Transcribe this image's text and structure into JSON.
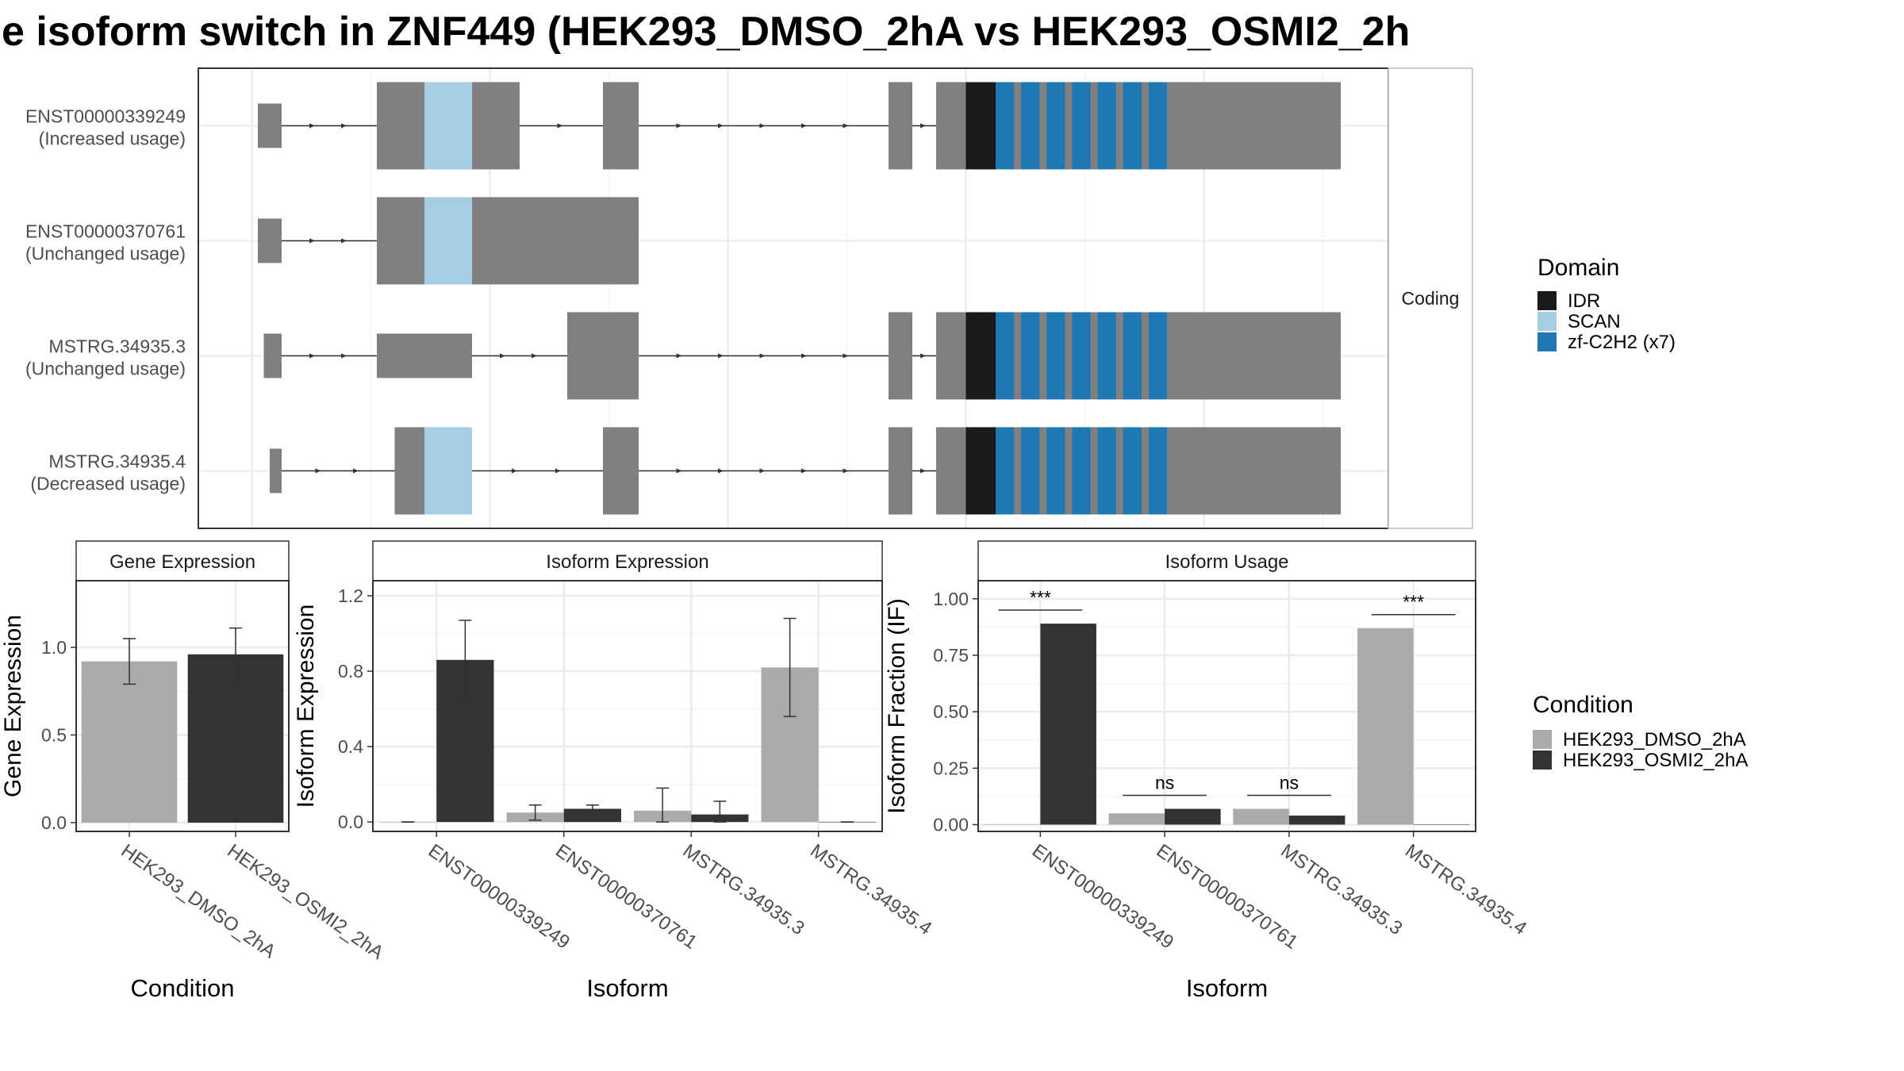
{
  "title": "e isoform switch in ZNF449 (HEK293_DMSO_2hA vs HEK293_OSMI2_2h",
  "colors": {
    "exon": "#808080",
    "idr": "#1a1a1a",
    "scan": "#a6cee3",
    "zf": "#1f78b4",
    "dmso": "#aaaaaa",
    "osmi": "#333333",
    "grid": "#ebebeb",
    "panel_border": "#333333",
    "strip_bg": "#ffffff"
  },
  "structure": {
    "strip_label": "Coding",
    "legend_title": "Domain",
    "legend_items": [
      {
        "label": "IDR",
        "color": "#1a1a1a"
      },
      {
        "label": "SCAN",
        "color": "#a6cee3"
      },
      {
        "label": "zf-C2H2 (x7)",
        "color": "#1f78b4"
      }
    ],
    "transcripts": [
      {
        "name": "ENST00000339249",
        "usage": "(Increased usage)",
        "exons": [
          [
            0.05,
            0.07,
            "n"
          ],
          [
            0.15,
            0.27,
            "c"
          ],
          [
            0.34,
            0.37,
            "c"
          ],
          [
            0.58,
            0.6,
            "c"
          ],
          [
            0.62,
            0.96,
            "c"
          ]
        ],
        "domains": [
          [
            0.19,
            0.23,
            "scan"
          ],
          [
            0.645,
            0.67,
            "idr"
          ],
          [
            0.67,
            0.82,
            "zf"
          ]
        ]
      },
      {
        "name": "ENST00000370761",
        "usage": "(Unchanged usage)",
        "exons": [
          [
            0.05,
            0.07,
            "n"
          ],
          [
            0.15,
            0.37,
            "c"
          ]
        ],
        "domains": [
          [
            0.19,
            0.23,
            "scan"
          ]
        ]
      },
      {
        "name": "MSTRG.34935.3",
        "usage": "(Unchanged usage)",
        "exons": [
          [
            0.055,
            0.07,
            "n"
          ],
          [
            0.15,
            0.23,
            "n"
          ],
          [
            0.31,
            0.37,
            "c"
          ],
          [
            0.58,
            0.6,
            "c"
          ],
          [
            0.62,
            0.96,
            "c"
          ]
        ],
        "domains": [
          [
            0.645,
            0.67,
            "idr"
          ],
          [
            0.67,
            0.82,
            "zf"
          ]
        ]
      },
      {
        "name": "MSTRG.34935.4",
        "usage": "(Decreased usage)",
        "exons": [
          [
            0.06,
            0.07,
            "n"
          ],
          [
            0.165,
            0.23,
            "c"
          ],
          [
            0.34,
            0.37,
            "c"
          ],
          [
            0.58,
            0.6,
            "c"
          ],
          [
            0.62,
            0.96,
            "c"
          ]
        ],
        "domains": [
          [
            0.19,
            0.23,
            "scan"
          ],
          [
            0.645,
            0.67,
            "idr"
          ],
          [
            0.67,
            0.82,
            "zf"
          ]
        ]
      }
    ]
  },
  "chart_data": [
    {
      "type": "bar",
      "title": "Gene Expression",
      "xlabel": "Condition",
      "ylabel": "Gene Expression",
      "categories": [
        "HEK293_DMSO_2hA",
        "HEK293_OSMI2_2hA"
      ],
      "values": [
        0.92,
        0.96
      ],
      "error": [
        [
          0.79,
          1.05
        ],
        [
          0.81,
          1.11
        ]
      ],
      "ylim": [
        -0.05,
        1.38
      ],
      "yticks": [
        "0.0",
        "0.5",
        "1.0"
      ],
      "grid": true
    },
    {
      "type": "bar",
      "title": "Isoform Expression",
      "xlabel": "Isoform",
      "ylabel": "Isoform Expression",
      "categories": [
        "ENST00000339249",
        "ENST00000370761",
        "MSTRG.34935.3",
        "MSTRG.34935.4"
      ],
      "series": [
        {
          "name": "HEK293_DMSO_2hA",
          "values": [
            0.0,
            0.05,
            0.06,
            0.82
          ],
          "error": [
            [
              0.0,
              0.0
            ],
            [
              0.01,
              0.09
            ],
            [
              0.0,
              0.18
            ],
            [
              0.56,
              1.08
            ]
          ]
        },
        {
          "name": "HEK293_OSMI2_2hA",
          "values": [
            0.86,
            0.07,
            0.04,
            0.0
          ],
          "error": [
            [
              0.65,
              1.07
            ],
            [
              0.05,
              0.09
            ],
            [
              0.0,
              0.11
            ],
            [
              0.0,
              0.0
            ]
          ]
        }
      ],
      "ylim": [
        -0.05,
        1.28
      ],
      "yticks": [
        "0.0",
        "0.4",
        "0.8",
        "1.2"
      ],
      "grid": true
    },
    {
      "type": "bar",
      "title": "Isoform Usage",
      "xlabel": "Isoform",
      "ylabel": "Isoform Fraction (IF)",
      "categories": [
        "ENST00000339249",
        "ENST00000370761",
        "MSTRG.34935.3",
        "MSTRG.34935.4"
      ],
      "series": [
        {
          "name": "HEK293_DMSO_2hA",
          "values": [
            0.0,
            0.05,
            0.07,
            0.87
          ]
        },
        {
          "name": "HEK293_OSMI2_2hA",
          "values": [
            0.89,
            0.07,
            0.04,
            0.0
          ]
        }
      ],
      "significance": [
        "***",
        "ns",
        "ns",
        "***"
      ],
      "ylim": [
        -0.03,
        1.08
      ],
      "yticks": [
        "0.00",
        "0.25",
        "0.50",
        "0.75",
        "1.00"
      ],
      "grid": true,
      "legend_title": "Condition",
      "legend": [
        "HEK293_DMSO_2hA",
        "HEK293_OSMI2_2hA"
      ],
      "legend_position": "right"
    }
  ]
}
